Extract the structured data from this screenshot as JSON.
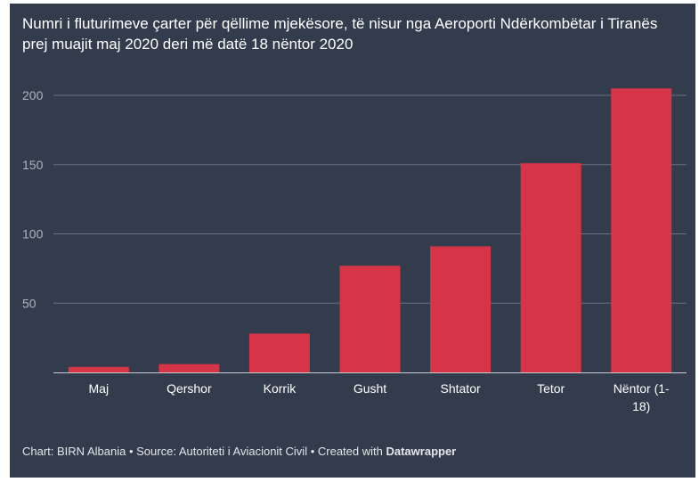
{
  "title": "Numri i fluturimeve çarter për qëllime mjekësore, të nisur nga Aeroporti Ndërkombëtar i Tiranës prej muajit maj 2020 deri më datë 18 nëntor 2020",
  "footer": {
    "chart_credit": "Chart: BIRN Albania",
    "source": "Source: Autoriteti i Aviacionit Civil",
    "created_with": "Created with",
    "tool": "Datawrapper",
    "separator": " • "
  },
  "colors": {
    "background": "#333c4c",
    "bar": "#d63447",
    "grid": "#6a7180",
    "text": "#ffffff"
  },
  "chart_data": {
    "type": "bar",
    "categories": [
      "Maj",
      "Qershor",
      "Korrik",
      "Gusht",
      "Shtator",
      "Tetor",
      "Nëntor (1-18)"
    ],
    "values": [
      4,
      6,
      28,
      77,
      91,
      151,
      205
    ],
    "title": "Numri i fluturimeve çarter për qëllime mjekësore, të nisur nga Aeroporti Ndërkombëtar i Tiranës prej muajit maj 2020 deri më datë 18 nëntor 2020",
    "xlabel": "",
    "ylabel": "",
    "ylim": [
      0,
      200
    ],
    "yticks": [
      50,
      100,
      150,
      200
    ],
    "grid": true
  }
}
